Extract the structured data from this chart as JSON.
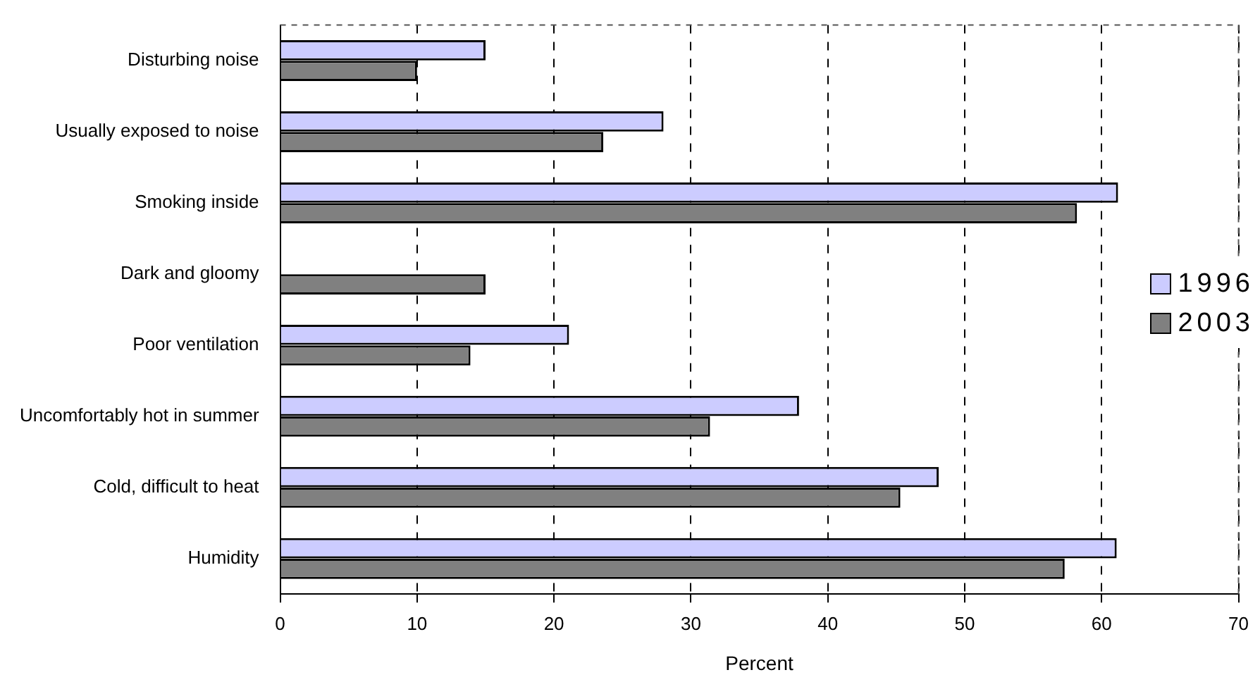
{
  "chart_data": {
    "type": "bar",
    "orientation": "horizontal",
    "xlabel": "Percent",
    "categories": [
      "Disturbing noise",
      "Usually exposed to noise",
      "Smoking inside",
      "Dark and gloomy",
      "Poor ventilation",
      "Uncomfortably hot in summer",
      "Cold, difficult to heat",
      "Humidity"
    ],
    "series": [
      {
        "name": "1996",
        "color": "#ccccff",
        "values": [
          15,
          28,
          61.2,
          null,
          21.1,
          37.9,
          48.1,
          61.1
        ]
      },
      {
        "name": "2003",
        "color": "#808080",
        "values": [
          10,
          23.6,
          58.2,
          15,
          13.9,
          31.4,
          45.3,
          57.3
        ]
      }
    ],
    "xlim": [
      0,
      70
    ],
    "xticks": [
      0,
      10,
      20,
      30,
      40,
      50,
      60,
      70
    ],
    "grid": "x",
    "legend": "right"
  }
}
